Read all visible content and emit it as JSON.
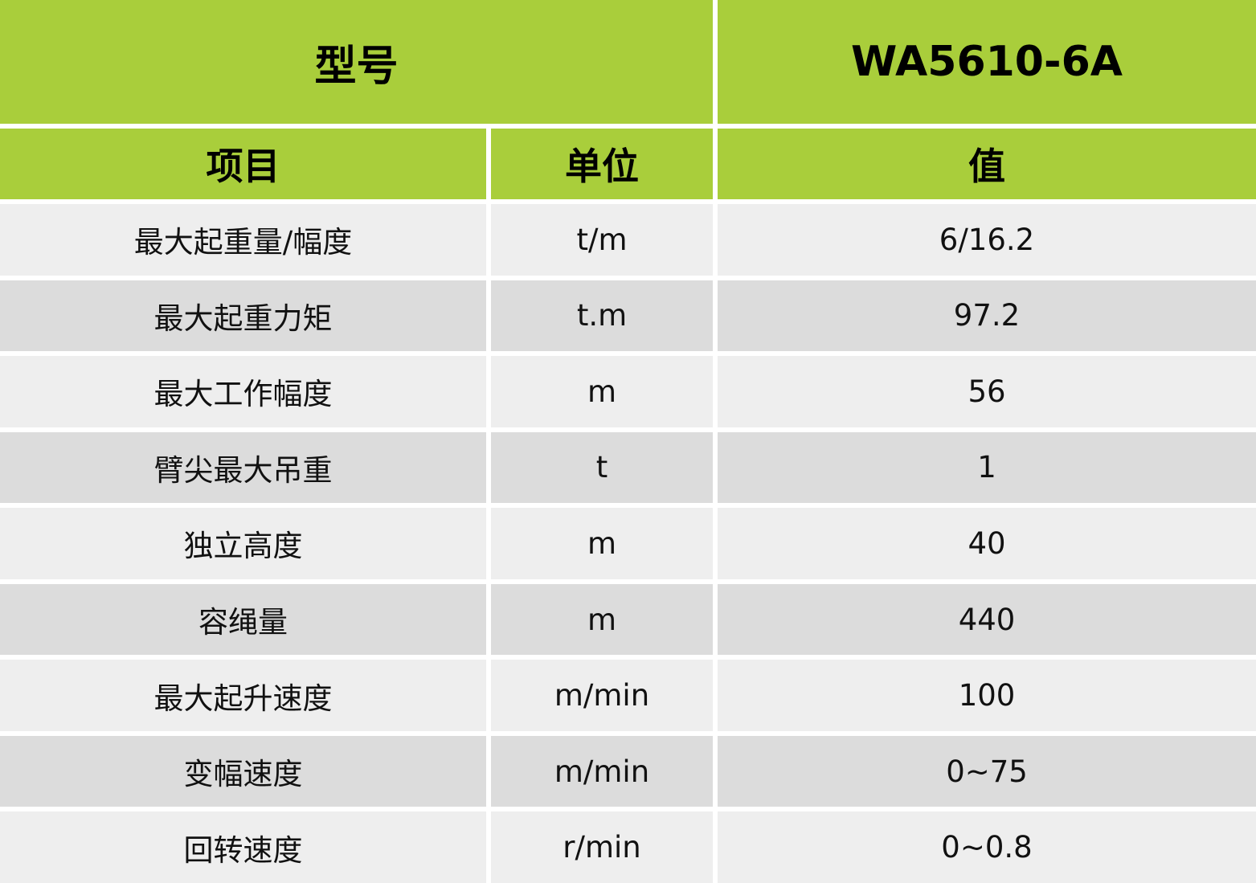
{
  "header": {
    "model_label": "型号",
    "model_value": "WA5610-6A"
  },
  "columns": {
    "item": "项目",
    "unit": "单位",
    "value": "值"
  },
  "rows": [
    {
      "item": "最大起重量/幅度",
      "unit": "t/m",
      "value": "6/16.2"
    },
    {
      "item": "最大起重力矩",
      "unit": "t.m",
      "value": "97.2"
    },
    {
      "item": "最大工作幅度",
      "unit": "m",
      "value": "56"
    },
    {
      "item": "臂尖最大吊重",
      "unit": "t",
      "value": "1"
    },
    {
      "item": "独立高度",
      "unit": "m",
      "value": "40"
    },
    {
      "item": "容绳量",
      "unit": "m",
      "value": "440"
    },
    {
      "item": "最大起升速度",
      "unit": "m/min",
      "value": "100"
    },
    {
      "item": "变幅速度",
      "unit": "m/min",
      "value": "0~75"
    },
    {
      "item": "回转速度",
      "unit": "r/min",
      "value": "0~0.8"
    }
  ],
  "colors": {
    "header_green": "#a9ce3b",
    "row_light": "#eeeeee",
    "row_dark": "#dcdcdc"
  }
}
